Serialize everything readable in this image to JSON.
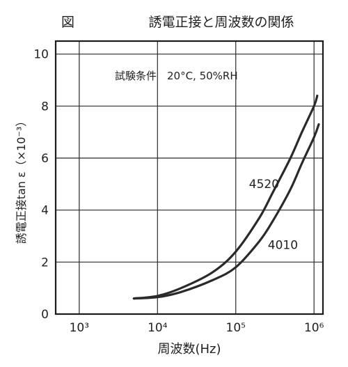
{
  "figure_label": "図",
  "chart_data": {
    "type": "line",
    "title": "誘電正接と周波数の関係",
    "condition_text": "試験条件　20°C, 50%RH",
    "xlabel": "周波数(Hz)",
    "ylabel": "誘電正接tan ε（×10⁻³）",
    "x_scale": "log",
    "xlim": [
      500,
      1300000
    ],
    "ylim": [
      0,
      10.5
    ],
    "x_ticks": [
      1000,
      10000,
      100000,
      1000000
    ],
    "x_tick_labels": [
      "10³",
      "10⁴",
      "10⁵",
      "10⁶"
    ],
    "y_ticks": [
      0,
      2,
      4,
      6,
      8,
      10
    ],
    "y_tick_labels": [
      "0",
      "2",
      "4",
      "6",
      "8",
      "10"
    ],
    "grid": true,
    "legend": "inline labels",
    "series": [
      {
        "name": "4520",
        "x": [
          5000,
          10000,
          20000,
          50000,
          100000,
          200000,
          300000,
          500000,
          700000,
          1000000,
          1100000
        ],
        "y": [
          0.6,
          0.7,
          1.0,
          1.6,
          2.4,
          3.7,
          4.7,
          6.0,
          7.0,
          8.0,
          8.4
        ]
      },
      {
        "name": "4010",
        "x": [
          5000,
          10000,
          20000,
          50000,
          100000,
          200000,
          300000,
          500000,
          700000,
          1000000,
          1150000
        ],
        "y": [
          0.6,
          0.65,
          0.85,
          1.3,
          1.8,
          2.8,
          3.6,
          4.8,
          5.8,
          6.8,
          7.3
        ]
      }
    ],
    "line_color": "#2a2a2a"
  }
}
